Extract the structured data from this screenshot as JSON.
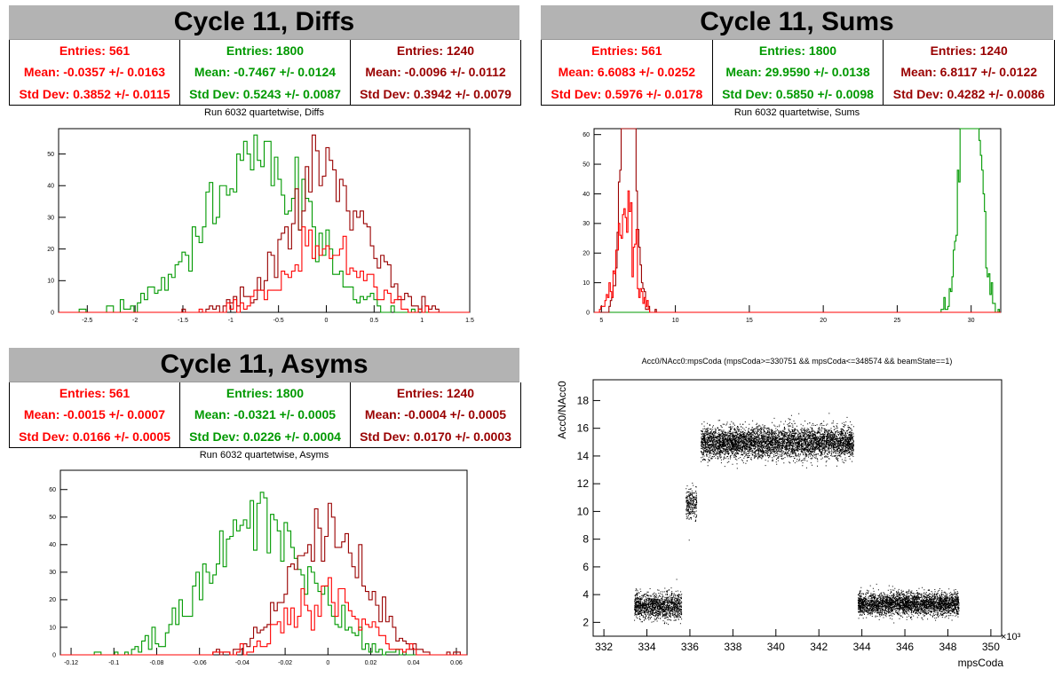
{
  "colors": {
    "red": "#ff0000",
    "green": "#009900",
    "darkred": "#990000",
    "title_bg": "#b3b3b3"
  },
  "panels": {
    "diffs": {
      "title": "Cycle 11, Diffs",
      "subtitle": "Run 6032 quartetwise, Diffs",
      "stats": [
        {
          "entries": "Entries: 561",
          "mean": "Mean: -0.0357 +/- 0.0163",
          "std": "Std Dev: 0.3852 +/- 0.0115",
          "color": "#ff0000"
        },
        {
          "entries": "Entries: 1800",
          "mean": "Mean: -0.7467 +/- 0.0124",
          "std": "Std Dev: 0.5243 +/- 0.0087",
          "color": "#009900"
        },
        {
          "entries": "Entries: 1240",
          "mean": "Mean: -0.0096 +/- 0.0112",
          "std": "Std Dev: 0.3942 +/- 0.0079",
          "color": "#990000"
        }
      ]
    },
    "sums": {
      "title": "Cycle 11, Sums",
      "subtitle": "Run 6032 quartetwise, Sums",
      "stats": [
        {
          "entries": "Entries: 561",
          "mean": "Mean: 6.6083 +/- 0.0252",
          "std": "Std Dev: 0.5976 +/- 0.0178",
          "color": "#ff0000"
        },
        {
          "entries": "Entries: 1800",
          "mean": "Mean: 29.9590 +/- 0.0138",
          "std": "Std Dev: 0.5850 +/- 0.0098",
          "color": "#009900"
        },
        {
          "entries": "Entries: 1240",
          "mean": "Mean: 6.8117 +/- 0.0122",
          "std": "Std Dev: 0.4282 +/- 0.0086",
          "color": "#990000"
        }
      ]
    },
    "asyms": {
      "title": "Cycle 11, Asyms",
      "subtitle": "Run 6032 quartetwise, Asyms",
      "stats": [
        {
          "entries": "Entries: 561",
          "mean": "Mean: -0.0015 +/- 0.0007",
          "std": "Std Dev: 0.0166 +/- 0.0005",
          "color": "#ff0000"
        },
        {
          "entries": "Entries: 1800",
          "mean": "Mean: -0.0321 +/- 0.0005",
          "std": "Std Dev: 0.0226 +/- 0.0004",
          "color": "#009900"
        },
        {
          "entries": "Entries: 1240",
          "mean": "Mean: -0.0004 +/- 0.0005",
          "std": "Std Dev: 0.0170 +/- 0.0003",
          "color": "#990000"
        }
      ]
    },
    "scatter": {
      "title": "Acc0/NAcc0:mpsCoda (mpsCoda>=330751 && mpsCoda<=348574 && beamState==1)",
      "xlabel": "mpsCoda",
      "ylabel": "Acc0/NAcc0",
      "xexp": "×10³"
    }
  },
  "chart_data": [
    {
      "type": "histogram",
      "name": "diffs",
      "xlim": [
        -2.8,
        1.5
      ],
      "ylim": [
        0,
        58
      ],
      "xticks": [
        -2.5,
        -2,
        -1.5,
        -1,
        -0.5,
        0,
        0.5,
        1,
        1.5
      ],
      "yticks": [
        0,
        10,
        20,
        30,
        40,
        50
      ],
      "series": [
        {
          "color": "#009900",
          "entries": 1800,
          "mean": -0.7467,
          "std": 0.5243
        },
        {
          "color": "#990000",
          "entries": 1240,
          "mean": -0.0096,
          "std": 0.3942
        },
        {
          "color": "#ff0000",
          "entries": 561,
          "mean": -0.0357,
          "std": 0.3852
        }
      ]
    },
    {
      "type": "histogram",
      "name": "sums",
      "xlim": [
        4.5,
        32
      ],
      "ylim": [
        0,
        62
      ],
      "xticks": [
        5,
        10,
        15,
        20,
        25,
        30
      ],
      "yticks": [
        0,
        10,
        20,
        30,
        40,
        50,
        60
      ],
      "series": [
        {
          "color": "#009900",
          "entries": 1800,
          "mean": 29.959,
          "std": 0.585
        },
        {
          "color": "#990000",
          "entries": 1240,
          "mean": 6.8117,
          "std": 0.4282
        },
        {
          "color": "#ff0000",
          "entries": 561,
          "mean": 6.6083,
          "std": 0.5976
        }
      ]
    },
    {
      "type": "histogram",
      "name": "asyms",
      "xlim": [
        -0.125,
        0.065
      ],
      "ylim": [
        0,
        67
      ],
      "xticks": [
        -0.12,
        -0.1,
        -0.08,
        -0.06,
        -0.04,
        -0.02,
        0,
        0.02,
        0.04,
        0.06
      ],
      "yticks": [
        0,
        10,
        20,
        30,
        40,
        50,
        60
      ],
      "series": [
        {
          "color": "#009900",
          "entries": 1800,
          "mean": -0.0321,
          "std": 0.0226
        },
        {
          "color": "#990000",
          "entries": 1240,
          "mean": -0.0004,
          "std": 0.017
        },
        {
          "color": "#ff0000",
          "entries": 561,
          "mean": -0.0015,
          "std": 0.0166
        }
      ]
    },
    {
      "type": "scatter",
      "name": "scatter",
      "xlim": [
        331.5,
        350.5
      ],
      "ylim": [
        1,
        19.5
      ],
      "xticks": [
        332,
        334,
        336,
        338,
        340,
        342,
        344,
        346,
        348,
        350
      ],
      "yticks": [
        2,
        4,
        6,
        8,
        10,
        12,
        14,
        16,
        18
      ],
      "clusters": [
        {
          "x": [
            333.4,
            335.6
          ],
          "y_center": 3.2,
          "y_spread": 0.45,
          "n": 1400
        },
        {
          "x": [
            335.8,
            336.3
          ],
          "y_center": 10.6,
          "y_spread": 0.55,
          "n": 260
        },
        {
          "x": [
            336.5,
            343.6
          ],
          "y_center": 15.0,
          "y_spread": 0.55,
          "n": 5200
        },
        {
          "x": [
            343.8,
            348.5
          ],
          "y_center": 3.35,
          "y_spread": 0.4,
          "n": 3300
        }
      ]
    }
  ]
}
